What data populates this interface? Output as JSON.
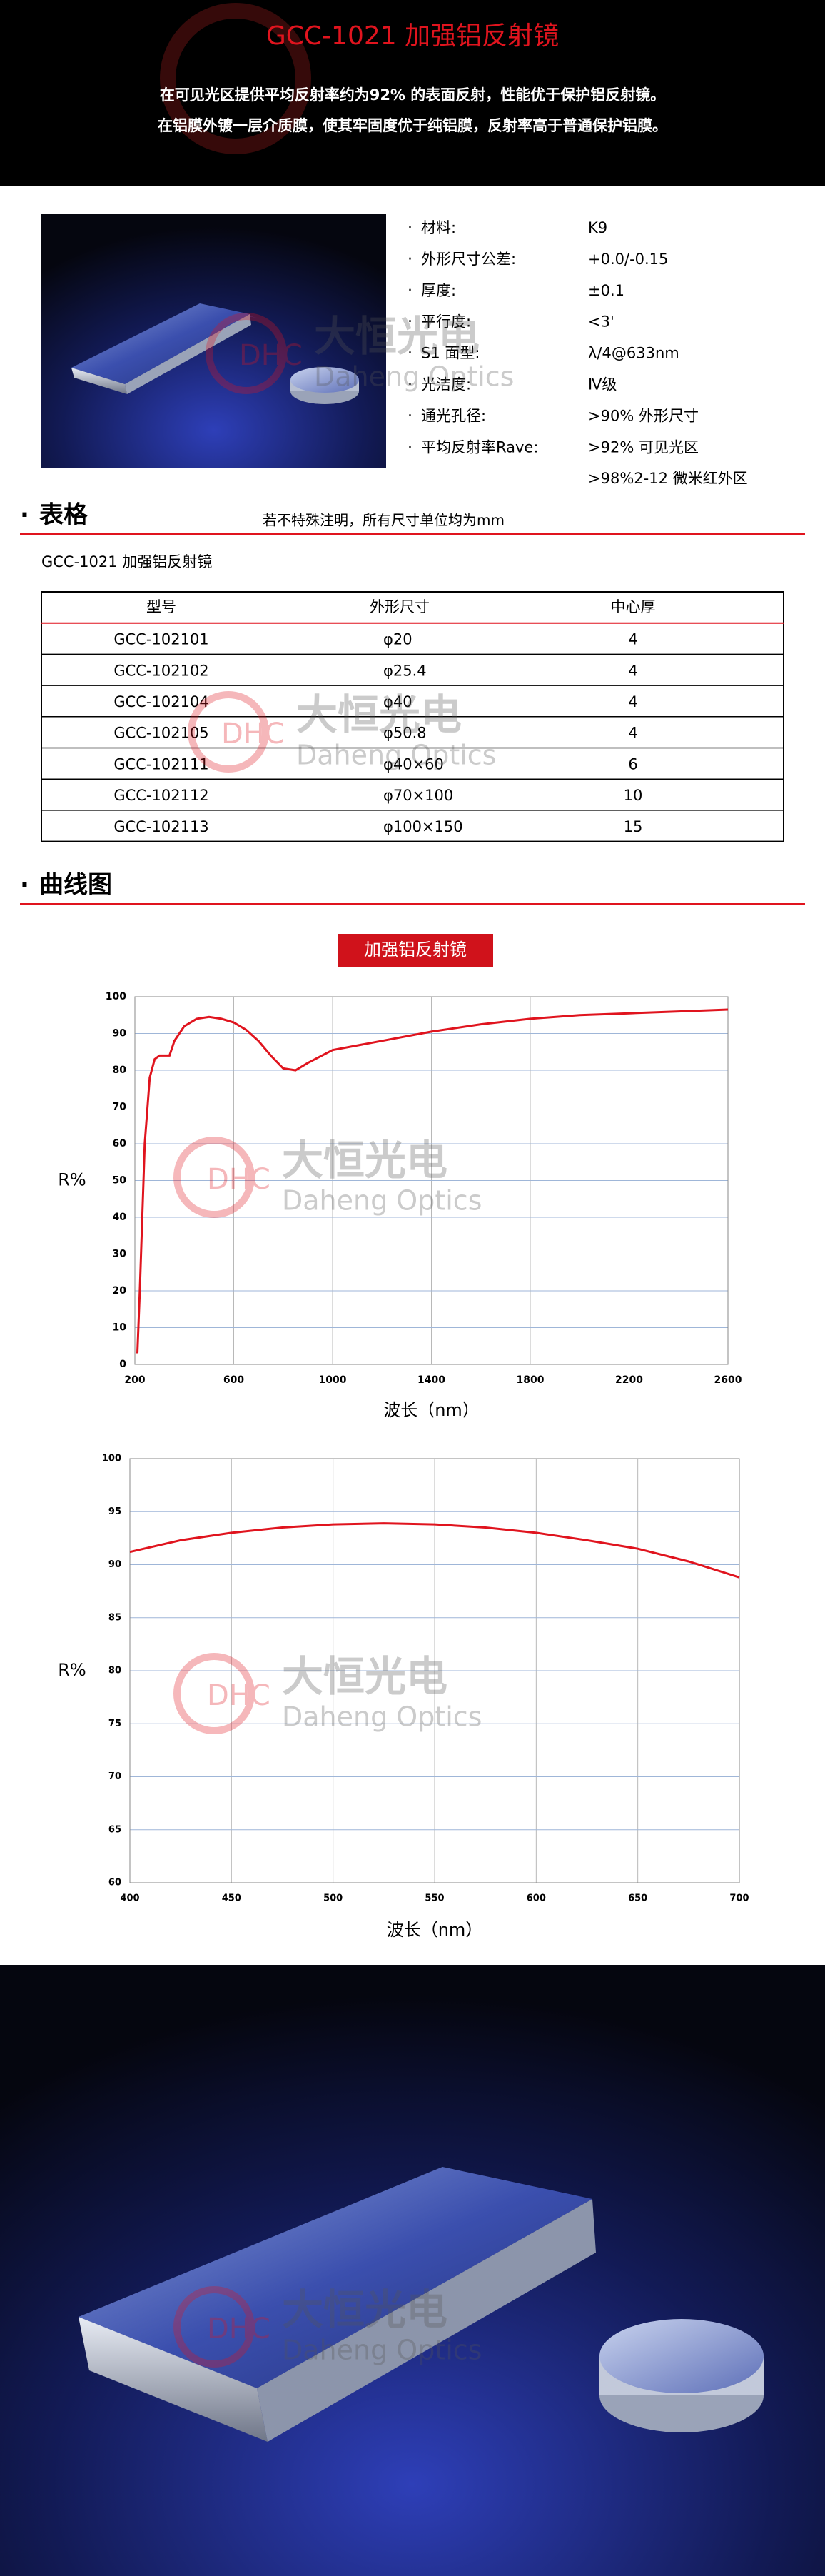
{
  "header": {
    "title": "GCC-1021 加强铝反射镜",
    "lines": [
      "在可见光区提供平均反射率约为92% 的表面反射，性能优于保护铝反射镜。",
      "在铝膜外镀一层介质膜，使其牢固度优于纯铝膜，反射率高于普通保护铝膜。"
    ]
  },
  "specs": [
    {
      "label": "材料:",
      "values": [
        "K9"
      ]
    },
    {
      "label": "外形尺寸公差:",
      "values": [
        "+0.0/-0.15"
      ]
    },
    {
      "label": "厚度:",
      "values": [
        "±0.1"
      ]
    },
    {
      "label": "平行度:",
      "values": [
        "<3'"
      ]
    },
    {
      "label": "S1 面型:",
      "values": [
        "λ/4@633nm"
      ]
    },
    {
      "label": "光洁度:",
      "values": [
        "Ⅳ级"
      ]
    },
    {
      "label": "通光孔径:",
      "values": [
        ">90% 外形尺寸"
      ]
    },
    {
      "label": "平均反射率Rave:",
      "values": [
        ">92% 可见光区",
        ">98%2-12 微米红外区"
      ]
    }
  ],
  "table_section": {
    "title": "表格",
    "note": "若不特殊注明，所有尺寸单位均为mm",
    "caption": "GCC-1021 加强铝反射镜",
    "columns": [
      "型号",
      "外形尺寸",
      "中心厚"
    ],
    "rows": [
      [
        "GCC-102101",
        "φ20",
        4
      ],
      [
        "GCC-102102",
        "φ25.4",
        4
      ],
      [
        "GCC-102104",
        "φ40",
        4
      ],
      [
        "GCC-102105",
        "φ50.8",
        4
      ],
      [
        "GCC-102111",
        "φ40×60",
        6
      ],
      [
        "GCC-102112",
        "φ70×100",
        10
      ],
      [
        "GCC-102113",
        "φ100×150",
        15
      ]
    ]
  },
  "curve_section": {
    "title": "曲线图"
  },
  "charts": [
    {
      "type": "line",
      "title": "加强铝反射镜",
      "ylabel": "R%",
      "xlabel": "波长（nm）",
      "color": "#e0141e",
      "grid": true,
      "x": [
        210,
        220,
        240,
        260,
        280,
        300,
        340,
        360,
        400,
        450,
        500,
        550,
        600,
        650,
        700,
        750,
        800,
        850,
        900,
        1000,
        1200,
        1400,
        1600,
        1800,
        2000,
        2200,
        2400,
        2600
      ],
      "values": [
        3,
        20,
        60,
        78,
        83,
        84,
        84,
        88,
        92,
        94,
        94.5,
        94,
        93,
        91,
        88,
        84,
        80.5,
        80,
        82,
        85.5,
        88,
        90.5,
        92.5,
        94,
        95,
        95.5,
        96,
        96.5
      ],
      "xlim": [
        200,
        2600
      ],
      "xticks": [
        200,
        600,
        1000,
        1400,
        1800,
        2200,
        2600
      ],
      "ylim": [
        0,
        100
      ],
      "yticks": [
        0,
        10,
        20,
        30,
        40,
        50,
        60,
        70,
        80,
        90,
        100
      ]
    },
    {
      "type": "line",
      "ylabel": "R%",
      "xlabel": "波长（nm）",
      "color": "#e0141e",
      "grid": true,
      "x": [
        400,
        425,
        450,
        475,
        500,
        525,
        550,
        575,
        600,
        625,
        650,
        675,
        700
      ],
      "values": [
        91.2,
        92.3,
        93,
        93.5,
        93.8,
        93.9,
        93.8,
        93.5,
        93,
        92.3,
        91.5,
        90.3,
        88.8
      ],
      "xlim": [
        400,
        700
      ],
      "xticks": [
        400,
        450,
        500,
        550,
        600,
        650,
        700
      ],
      "ylim": [
        60,
        100
      ],
      "yticks": [
        60,
        65,
        70,
        75,
        80,
        85,
        90,
        95,
        100
      ]
    }
  ],
  "watermark": {
    "logo": "DHC",
    "cn": "大恒光电",
    "en": "Daheng Optics"
  }
}
